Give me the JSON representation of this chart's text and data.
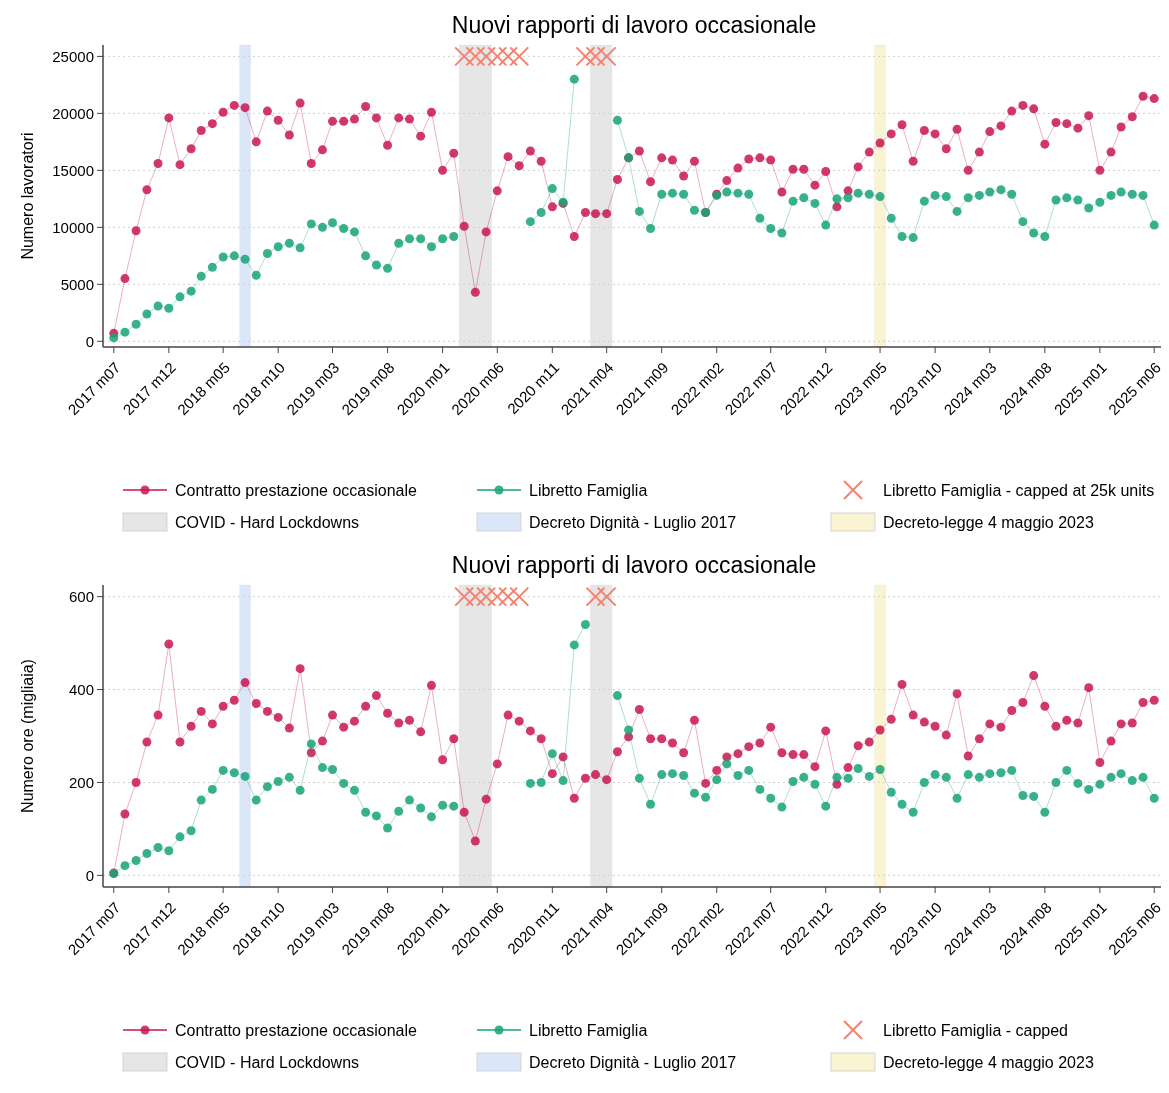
{
  "chart_data": [
    {
      "type": "line",
      "title": "Nuovi rapporti di lavoro occasionale",
      "ylabel": "Numero lavoratori",
      "x": [
        "2017-07",
        "2017-08",
        "2017-09",
        "2017-10",
        "2017-11",
        "2017-12",
        "2018-01",
        "2018-02",
        "2018-03",
        "2018-04",
        "2018-05",
        "2018-06",
        "2018-07",
        "2018-08",
        "2018-09",
        "2018-10",
        "2018-11",
        "2018-12",
        "2019-01",
        "2019-02",
        "2019-03",
        "2019-04",
        "2019-05",
        "2019-06",
        "2019-07",
        "2019-08",
        "2019-09",
        "2019-10",
        "2019-11",
        "2019-12",
        "2020-01",
        "2020-02",
        "2020-03",
        "2020-04",
        "2020-05",
        "2020-06",
        "2020-07",
        "2020-08",
        "2020-09",
        "2020-10",
        "2020-11",
        "2020-12",
        "2021-01",
        "2021-02",
        "2021-03",
        "2021-04",
        "2021-05",
        "2021-06",
        "2021-07",
        "2021-08",
        "2021-09",
        "2021-10",
        "2021-11",
        "2021-12",
        "2022-01",
        "2022-02",
        "2022-03",
        "2022-04",
        "2022-05",
        "2022-06",
        "2022-07",
        "2022-08",
        "2022-09",
        "2022-10",
        "2022-11",
        "2022-12",
        "2023-01",
        "2023-02",
        "2023-03",
        "2023-04",
        "2023-05",
        "2023-06",
        "2023-07",
        "2023-08",
        "2023-09",
        "2023-10",
        "2023-11",
        "2023-12",
        "2024-01",
        "2024-02",
        "2024-03",
        "2024-04",
        "2024-05",
        "2024-06",
        "2024-07",
        "2024-08",
        "2024-09",
        "2024-10",
        "2024-11",
        "2024-12",
        "2025-01",
        "2025-02",
        "2025-03",
        "2025-04",
        "2025-05",
        "2025-06"
      ],
      "xlim": [
        "2017-06",
        "2025-07"
      ],
      "xticks": [
        {
          "value": "2017-07",
          "label": "2017 m07"
        },
        {
          "value": "2017-12",
          "label": "2017 m12"
        },
        {
          "value": "2018-05",
          "label": "2018 m05"
        },
        {
          "value": "2018-10",
          "label": "2018 m10"
        },
        {
          "value": "2019-03",
          "label": "2019 m03"
        },
        {
          "value": "2019-08",
          "label": "2019 m08"
        },
        {
          "value": "2020-01",
          "label": "2020 m01"
        },
        {
          "value": "2020-06",
          "label": "2020 m06"
        },
        {
          "value": "2020-11",
          "label": "2020 m11"
        },
        {
          "value": "2021-04",
          "label": "2021 m04"
        },
        {
          "value": "2021-09",
          "label": "2021 m09"
        },
        {
          "value": "2022-02",
          "label": "2022 m02"
        },
        {
          "value": "2022-07",
          "label": "2022 m07"
        },
        {
          "value": "2022-12",
          "label": "2022 m12"
        },
        {
          "value": "2023-05",
          "label": "2023 m05"
        },
        {
          "value": "2023-10",
          "label": "2023 m10"
        },
        {
          "value": "2024-03",
          "label": "2024 m03"
        },
        {
          "value": "2024-08",
          "label": "2024 m08"
        },
        {
          "value": "2025-01",
          "label": "2025 m01"
        },
        {
          "value": "2025-06",
          "label": "2025 m06"
        }
      ],
      "ylim": [
        -500,
        26000
      ],
      "yticks": [
        0,
        5000,
        10000,
        15000,
        20000,
        25000
      ],
      "grid": "y",
      "legend": "bottom",
      "marker": "circle",
      "series": [
        {
          "name": "Contratto prestazione occasionale",
          "color": "#c8164f",
          "values": [
            700,
            5500,
            9700,
            13300,
            15600,
            19600,
            15500,
            16900,
            18500,
            19100,
            20100,
            20700,
            20500,
            17500,
            20200,
            19400,
            18100,
            20900,
            15600,
            16800,
            19300,
            19300,
            19500,
            20600,
            19600,
            17200,
            19600,
            19500,
            18000,
            20100,
            15000,
            16500,
            10100,
            4300,
            9600,
            13200,
            16200,
            15400,
            16700,
            15800,
            11800,
            12100,
            9200,
            11300,
            11200,
            11200,
            14200,
            16100,
            16700,
            14000,
            16100,
            15900,
            14500,
            15800,
            11300,
            12900,
            14100,
            15200,
            16000,
            16100,
            15900,
            13100,
            15100,
            15100,
            13700,
            14900,
            11800,
            13200,
            15300,
            16600,
            17400,
            18200,
            19000,
            15800,
            18500,
            18200,
            16900,
            18600,
            15000,
            16600,
            18400,
            18900,
            20200,
            20700,
            20400,
            17300,
            19200,
            19100,
            18700,
            19800,
            15000,
            16600,
            18800,
            19700,
            21500,
            21300
          ]
        },
        {
          "name": "Libretto Famiglia",
          "color": "#16a37a",
          "values": [
            300,
            800,
            1500,
            2400,
            3100,
            2900,
            3900,
            4400,
            5700,
            6500,
            7400,
            7500,
            7200,
            5800,
            7700,
            8300,
            8600,
            8200,
            10300,
            10000,
            10400,
            9900,
            9600,
            7500,
            6700,
            6400,
            8600,
            9000,
            9000,
            8300,
            9000,
            9200,
            null,
            null,
            null,
            null,
            null,
            null,
            10500,
            11300,
            13400,
            12200,
            23000,
            null,
            null,
            null,
            19400,
            16100,
            11400,
            9900,
            12900,
            13000,
            12900,
            11500,
            11300,
            12800,
            13100,
            13000,
            12900,
            10800,
            9900,
            9500,
            12300,
            12600,
            12100,
            10200,
            12500,
            12600,
            13000,
            12900,
            12700,
            10800,
            9200,
            9100,
            12300,
            12800,
            12700,
            11400,
            12600,
            12800,
            13100,
            13300,
            12900,
            10500,
            9500,
            9200,
            12400,
            12600,
            12400,
            11700,
            12200,
            12800,
            13100,
            12900,
            12800,
            10200
          ]
        },
        {
          "name": "Libretto Famiglia - capped at 25k units",
          "color": "#f4826f",
          "type": "scatter",
          "marker": "cross",
          "values": [
            null,
            null,
            null,
            null,
            null,
            null,
            null,
            null,
            null,
            null,
            null,
            null,
            null,
            null,
            null,
            null,
            null,
            null,
            null,
            null,
            null,
            null,
            null,
            null,
            null,
            null,
            null,
            null,
            null,
            null,
            null,
            null,
            25000,
            25000,
            25000,
            25000,
            25000,
            25000,
            null,
            null,
            null,
            null,
            null,
            25000,
            25000,
            25000,
            null,
            null,
            null,
            null,
            null,
            null,
            null,
            null,
            null,
            null,
            null,
            null,
            null,
            null,
            null,
            null,
            null,
            null,
            null,
            null,
            null,
            null,
            null,
            null,
            null,
            null,
            null,
            null,
            null,
            null,
            null,
            null,
            null,
            null,
            null,
            null,
            null,
            null,
            null,
            null,
            null,
            null,
            null,
            null,
            null,
            null,
            null,
            null,
            null,
            null
          ]
        }
      ],
      "bands": [
        {
          "axis": "x",
          "from": "2020-02-16",
          "to": "2020-05-16",
          "label": "COVID - Hard Lockdowns",
          "color": "#e6e6e6"
        },
        {
          "axis": "x",
          "from": "2018-06-16",
          "to": "2018-07-16",
          "label": "Decreto Dignità - Luglio 2017",
          "color": "#dbe7f8"
        },
        {
          "axis": "x",
          "from": "2023-04-16",
          "to": "2023-05-16",
          "label": "Decreto-legge 4 maggio 2023",
          "color": "#faf4d2"
        },
        {
          "axis": "x",
          "from": "2021-02-15",
          "to": "2021-04-16",
          "color": "#e6e6e6"
        }
      ]
    },
    {
      "type": "line",
      "title": "Nuovi rapporti di lavoro occasionale",
      "ylabel": "Numero ore (migliaia)",
      "x": [
        "2017-07",
        "2017-08",
        "2017-09",
        "2017-10",
        "2017-11",
        "2017-12",
        "2018-01",
        "2018-02",
        "2018-03",
        "2018-04",
        "2018-05",
        "2018-06",
        "2018-07",
        "2018-08",
        "2018-09",
        "2018-10",
        "2018-11",
        "2018-12",
        "2019-01",
        "2019-02",
        "2019-03",
        "2019-04",
        "2019-05",
        "2019-06",
        "2019-07",
        "2019-08",
        "2019-09",
        "2019-10",
        "2019-11",
        "2019-12",
        "2020-01",
        "2020-02",
        "2020-03",
        "2020-04",
        "2020-05",
        "2020-06",
        "2020-07",
        "2020-08",
        "2020-09",
        "2020-10",
        "2020-11",
        "2020-12",
        "2021-01",
        "2021-02",
        "2021-03",
        "2021-04",
        "2021-05",
        "2021-06",
        "2021-07",
        "2021-08",
        "2021-09",
        "2021-10",
        "2021-11",
        "2021-12",
        "2022-01",
        "2022-02",
        "2022-03",
        "2022-04",
        "2022-05",
        "2022-06",
        "2022-07",
        "2022-08",
        "2022-09",
        "2022-10",
        "2022-11",
        "2022-12",
        "2023-01",
        "2023-02",
        "2023-03",
        "2023-04",
        "2023-05",
        "2023-06",
        "2023-07",
        "2023-08",
        "2023-09",
        "2023-10",
        "2023-11",
        "2023-12",
        "2024-01",
        "2024-02",
        "2024-03",
        "2024-04",
        "2024-05",
        "2024-06",
        "2024-07",
        "2024-08",
        "2024-09",
        "2024-10",
        "2024-11",
        "2024-12",
        "2025-01",
        "2025-02",
        "2025-03",
        "2025-04",
        "2025-05",
        "2025-06"
      ],
      "xlim": [
        "2017-06",
        "2025-07"
      ],
      "xticks": [
        {
          "value": "2017-07",
          "label": "2017 m07"
        },
        {
          "value": "2017-12",
          "label": "2017 m12"
        },
        {
          "value": "2018-05",
          "label": "2018 m05"
        },
        {
          "value": "2018-10",
          "label": "2018 m10"
        },
        {
          "value": "2019-03",
          "label": "2019 m03"
        },
        {
          "value": "2019-08",
          "label": "2019 m08"
        },
        {
          "value": "2020-01",
          "label": "2020 m01"
        },
        {
          "value": "2020-06",
          "label": "2020 m06"
        },
        {
          "value": "2020-11",
          "label": "2020 m11"
        },
        {
          "value": "2021-04",
          "label": "2021 m04"
        },
        {
          "value": "2021-09",
          "label": "2021 m09"
        },
        {
          "value": "2022-02",
          "label": "2022 m02"
        },
        {
          "value": "2022-07",
          "label": "2022 m07"
        },
        {
          "value": "2022-12",
          "label": "2022 m12"
        },
        {
          "value": "2023-05",
          "label": "2023 m05"
        },
        {
          "value": "2023-10",
          "label": "2023 m10"
        },
        {
          "value": "2024-03",
          "label": "2024 m03"
        },
        {
          "value": "2024-08",
          "label": "2024 m08"
        },
        {
          "value": "2025-01",
          "label": "2025 m01"
        },
        {
          "value": "2025-06",
          "label": "2025 m06"
        }
      ],
      "ylim": [
        -25,
        625
      ],
      "yticks": [
        0,
        200,
        400,
        600
      ],
      "grid": "y",
      "legend": "bottom",
      "marker": "circle",
      "series": [
        {
          "name": "Contratto prestazione occasionale",
          "color": "#c8164f",
          "values": [
            5,
            132,
            200,
            287,
            345,
            498,
            287,
            321,
            353,
            326,
            364,
            377,
            415,
            370,
            353,
            340,
            317,
            445,
            264,
            289,
            345,
            319,
            332,
            364,
            387,
            349,
            328,
            334,
            309,
            409,
            249,
            294,
            136,
            74,
            164,
            240,
            345,
            332,
            311,
            294,
            219,
            255,
            166,
            209,
            217,
            206,
            266,
            298,
            357,
            294,
            294,
            285,
            264,
            334,
            198,
            226,
            255,
            262,
            277,
            285,
            319,
            264,
            260,
            260,
            234,
            311,
            196,
            232,
            279,
            287,
            313,
            336,
            411,
            345,
            330,
            321,
            302,
            391,
            257,
            294,
            326,
            319,
            355,
            372,
            430,
            364,
            321,
            334,
            328,
            404,
            243,
            289,
            326,
            328,
            372,
            377
          ]
        },
        {
          "name": "Libretto Famiglia",
          "color": "#16a37a",
          "values": [
            4,
            21,
            32,
            47,
            60,
            53,
            83,
            96,
            162,
            185,
            226,
            221,
            213,
            162,
            191,
            202,
            211,
            183,
            283,
            232,
            228,
            198,
            183,
            136,
            128,
            102,
            138,
            162,
            145,
            126,
            151,
            149,
            null,
            null,
            null,
            null,
            null,
            null,
            198,
            200,
            262,
            204,
            496,
            540,
            null,
            null,
            387,
            313,
            209,
            153,
            217,
            219,
            215,
            177,
            168,
            206,
            240,
            215,
            226,
            185,
            166,
            147,
            202,
            211,
            196,
            149,
            211,
            209,
            230,
            213,
            228,
            179,
            153,
            136,
            200,
            217,
            211,
            166,
            217,
            211,
            219,
            221,
            226,
            172,
            170,
            136,
            200,
            226,
            198,
            185,
            196,
            211,
            219,
            204,
            211,
            166
          ]
        },
        {
          "name": "Libretto Famiglia - capped",
          "color": "#f4826f",
          "type": "scatter",
          "marker": "cross",
          "values": [
            null,
            null,
            null,
            null,
            null,
            null,
            null,
            null,
            null,
            null,
            null,
            null,
            null,
            null,
            null,
            null,
            null,
            null,
            null,
            null,
            null,
            null,
            null,
            null,
            null,
            null,
            null,
            null,
            null,
            null,
            null,
            null,
            600,
            600,
            600,
            600,
            600,
            600,
            null,
            null,
            null,
            null,
            null,
            null,
            600,
            600,
            null,
            null,
            null,
            null,
            null,
            null,
            null,
            null,
            null,
            null,
            null,
            null,
            null,
            null,
            null,
            null,
            null,
            null,
            null,
            null,
            null,
            null,
            null,
            null,
            null,
            null,
            null,
            null,
            null,
            null,
            null,
            null,
            null,
            null,
            null,
            null,
            null,
            null,
            null,
            null,
            null,
            null,
            null,
            null,
            null,
            null,
            null,
            null,
            null,
            null
          ]
        }
      ],
      "bands": [
        {
          "axis": "x",
          "from": "2020-02-16",
          "to": "2020-05-16",
          "label": "COVID - Hard Lockdowns",
          "color": "#e6e6e6"
        },
        {
          "axis": "x",
          "from": "2018-06-16",
          "to": "2018-07-16",
          "label": "Decreto Dignità - Luglio 2017",
          "color": "#dbe7f8"
        },
        {
          "axis": "x",
          "from": "2023-04-16",
          "to": "2023-05-16",
          "label": "Decreto-legge 4 maggio 2023",
          "color": "#faf4d2"
        },
        {
          "axis": "x",
          "from": "2021-02-15",
          "to": "2021-04-16",
          "color": "#e6e6e6"
        }
      ]
    }
  ]
}
